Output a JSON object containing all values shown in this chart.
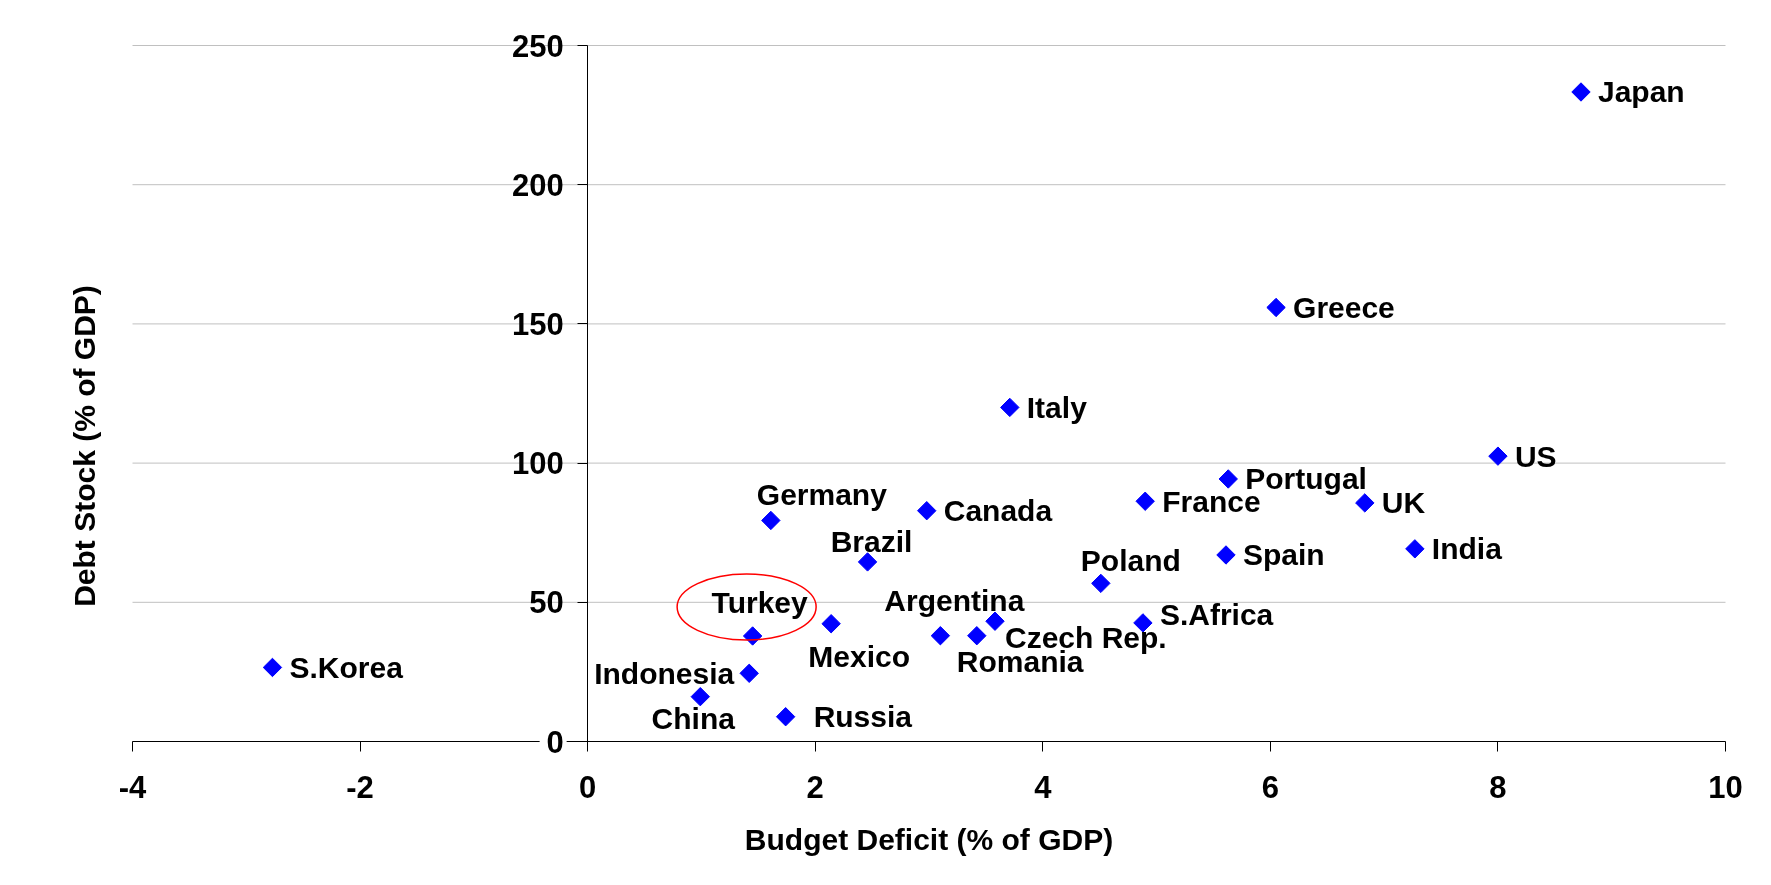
{
  "chart_data": {
    "type": "scatter",
    "xlabel": "Budget Deficit (% of GDP)",
    "ylabel": "Debt Stock (% of GDP)",
    "xlim": [
      -4,
      10
    ],
    "ylim": [
      0,
      250
    ],
    "xticks": [
      -4,
      -2,
      0,
      2,
      4,
      6,
      8,
      10
    ],
    "yticks": [
      0,
      50,
      100,
      150,
      200,
      250
    ],
    "grid": "y",
    "marker": "diamond",
    "series": [
      {
        "color": "#0000ff",
        "x": [
          -2.77,
          0.99,
          1.42,
          1.45,
          1.61,
          1.74,
          2.14,
          2.46,
          2.98,
          3.1,
          3.42,
          3.58,
          3.71,
          4.51,
          4.88,
          4.9,
          5.61,
          5.63,
          6.05,
          6.83,
          7.27,
          8.0,
          8.73
        ],
        "values": [
          26.6,
          16.1,
          24.5,
          37.9,
          79.4,
          8.9,
          42.3,
          64.5,
          82.9,
          38.0,
          38.0,
          43.2,
          120.0,
          56.8,
          42.6,
          86.3,
          67.0,
          94.3,
          155.9,
          85.7,
          69.2,
          102.5,
          233.3
        ]
      }
    ],
    "annotations": [
      {
        "text": "S.Korea",
        "x": -2.77,
        "y": 26.6
      },
      {
        "text": "China",
        "x": 0.99,
        "y": 16.1
      },
      {
        "text": "Indonesia",
        "x": 1.42,
        "y": 24.5
      },
      {
        "text": "Turkey",
        "x": 1.45,
        "y": 37.9
      },
      {
        "text": "Germany",
        "x": 1.61,
        "y": 79.4
      },
      {
        "text": "Russia",
        "x": 1.74,
        "y": 8.9
      },
      {
        "text": "Mexico",
        "x": 2.14,
        "y": 42.3
      },
      {
        "text": "Brazil",
        "x": 2.46,
        "y": 64.5
      },
      {
        "text": "Canada",
        "x": 2.98,
        "y": 82.9
      },
      {
        "text": "Argentina",
        "x": 3.1,
        "y": 38.0
      },
      {
        "text": "Romania",
        "x": 3.42,
        "y": 38.0
      },
      {
        "text": "Czech Rep.",
        "x": 3.58,
        "y": 43.2
      },
      {
        "text": "Italy",
        "x": 3.71,
        "y": 120.0
      },
      {
        "text": "Poland",
        "x": 4.51,
        "y": 56.8
      },
      {
        "text": "S.Africa",
        "x": 4.88,
        "y": 42.6
      },
      {
        "text": "France",
        "x": 4.9,
        "y": 86.3
      },
      {
        "text": "Spain",
        "x": 5.61,
        "y": 67.0
      },
      {
        "text": "Portugal",
        "x": 5.63,
        "y": 94.3
      },
      {
        "text": "Greece",
        "x": 6.05,
        "y": 155.9
      },
      {
        "text": "UK",
        "x": 6.83,
        "y": 85.7
      },
      {
        "text": "India",
        "x": 7.27,
        "y": 69.2
      },
      {
        "text": "US",
        "x": 8.0,
        "y": 102.5
      },
      {
        "text": "Japan",
        "x": 8.73,
        "y": 233.3
      }
    ]
  }
}
